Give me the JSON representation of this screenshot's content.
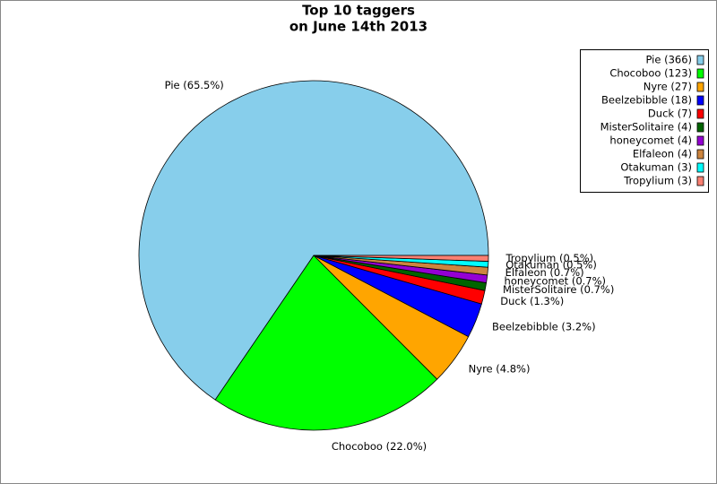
{
  "chart_data": {
    "type": "pie",
    "title": "Top 10 taggers",
    "subtitle": "on June 14th 2013",
    "categories": [
      "Pie",
      "Chocoboo",
      "Nyre",
      "Beelzebibble",
      "Duck",
      "MisterSolitaire",
      "honeycomet",
      "Elfaleon",
      "Otakuman",
      "Tropylium"
    ],
    "values": [
      366,
      123,
      27,
      18,
      7,
      4,
      4,
      4,
      3,
      3
    ],
    "value_labels": [
      "Pie (65.5%)",
      "Chocoboo (22.0%)",
      "Nyre (4.8%)",
      "Beelzebibble (3.2%)",
      "Duck (1.3%)",
      "MisterSolitaire (0.7%)",
      "honeycomet (0.7%)",
      "Elfaleon (0.7%)",
      "Otakuman (0.5%)",
      "Tropylium (0.5%)"
    ],
    "legend_labels": [
      "Pie (366)",
      "Chocoboo (123)",
      "Nyre (27)",
      "Beelzebibble (18)",
      "Duck (7)",
      "MisterSolitaire (4)",
      "honeycomet (4)",
      "Elfaleon (4)",
      "Otakuman (3)",
      "Tropylium (3)"
    ],
    "colors": [
      "#87ceeb",
      "#00ff00",
      "#ffa500",
      "#0000ff",
      "#ff0000",
      "#006400",
      "#9400d3",
      "#cd853f",
      "#00ffff",
      "#fa8072"
    ],
    "legend": "upper right"
  }
}
